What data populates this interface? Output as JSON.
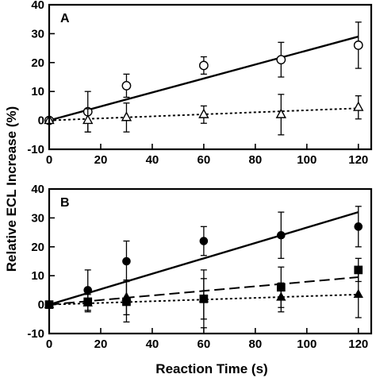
{
  "chart_data": [
    {
      "type": "scatter",
      "panel": "A",
      "xlabel": "Reaction Time (s)",
      "ylabel": "Relative ECL Increase (%)",
      "xlim": [
        0,
        125
      ],
      "ylim": [
        -10,
        40
      ],
      "x_ticks": [
        0,
        20,
        40,
        60,
        80,
        100,
        120
      ],
      "y_ticks": [
        -10,
        0,
        10,
        20,
        30,
        40
      ],
      "x_tick_labels": [
        "0",
        "20",
        "40",
        "60",
        "80",
        "100",
        "120"
      ],
      "y_tick_labels": [
        "-10",
        "0",
        "10",
        "20",
        "30",
        "40"
      ],
      "grid": false,
      "legend": "none",
      "series": [
        {
          "marker": "open-circle",
          "x": [
            0,
            15,
            30,
            60,
            90,
            120
          ],
          "y": [
            0,
            3,
            12,
            19,
            21,
            26
          ],
          "error": [
            0,
            7,
            4,
            3,
            6,
            8
          ],
          "fit": {
            "x": [
              0,
              120
            ],
            "y": [
              0,
              29
            ],
            "style": "solid"
          }
        },
        {
          "marker": "open-triangle",
          "x": [
            0,
            15,
            30,
            60,
            90,
            120
          ],
          "y": [
            0,
            0,
            1,
            2,
            2,
            4.5
          ],
          "error": [
            0,
            4,
            5,
            3,
            7,
            4
          ],
          "fit": {
            "x": [
              0,
              120
            ],
            "y": [
              0,
              4.2
            ],
            "style": "dotted"
          }
        }
      ]
    },
    {
      "type": "scatter",
      "panel": "B",
      "xlabel": "Reaction Time (s)",
      "ylabel": "Relative ECL Increase (%)",
      "xlim": [
        0,
        125
      ],
      "ylim": [
        -10,
        40
      ],
      "x_ticks": [
        0,
        20,
        40,
        60,
        80,
        100,
        120
      ],
      "y_ticks": [
        -10,
        0,
        10,
        20,
        30,
        40
      ],
      "x_tick_labels": [
        "0",
        "20",
        "40",
        "60",
        "80",
        "100",
        "120"
      ],
      "y_tick_labels": [
        "-10",
        "0",
        "10",
        "20",
        "30",
        "40"
      ],
      "grid": false,
      "legend": "none",
      "series": [
        {
          "marker": "filled-circle",
          "x": [
            0,
            15,
            30,
            60,
            90,
            120
          ],
          "y": [
            0,
            5,
            15,
            22,
            24,
            27
          ],
          "error": [
            0,
            7,
            7,
            5,
            8,
            7
          ],
          "fit": {
            "x": [
              0,
              120
            ],
            "y": [
              0,
              32
            ],
            "style": "solid"
          }
        },
        {
          "marker": "filled-square",
          "x": [
            0,
            15,
            30,
            60,
            90,
            120
          ],
          "y": [
            0,
            1,
            1,
            2,
            6,
            12
          ],
          "error": [
            0,
            3,
            7,
            7,
            7,
            4
          ],
          "fit": {
            "x": [
              0,
              120
            ],
            "y": [
              0,
              9.5
            ],
            "style": "dashed"
          }
        },
        {
          "marker": "filled-triangle",
          "x": [
            0,
            15,
            30,
            60,
            90,
            120
          ],
          "y": [
            0,
            0.5,
            2.5,
            2,
            2.5,
            3.5
          ],
          "error": [
            0,
            3,
            6,
            10,
            5,
            8
          ],
          "fit": {
            "x": [
              0,
              120
            ],
            "y": [
              0,
              3.5
            ],
            "style": "dotted"
          }
        }
      ]
    }
  ]
}
